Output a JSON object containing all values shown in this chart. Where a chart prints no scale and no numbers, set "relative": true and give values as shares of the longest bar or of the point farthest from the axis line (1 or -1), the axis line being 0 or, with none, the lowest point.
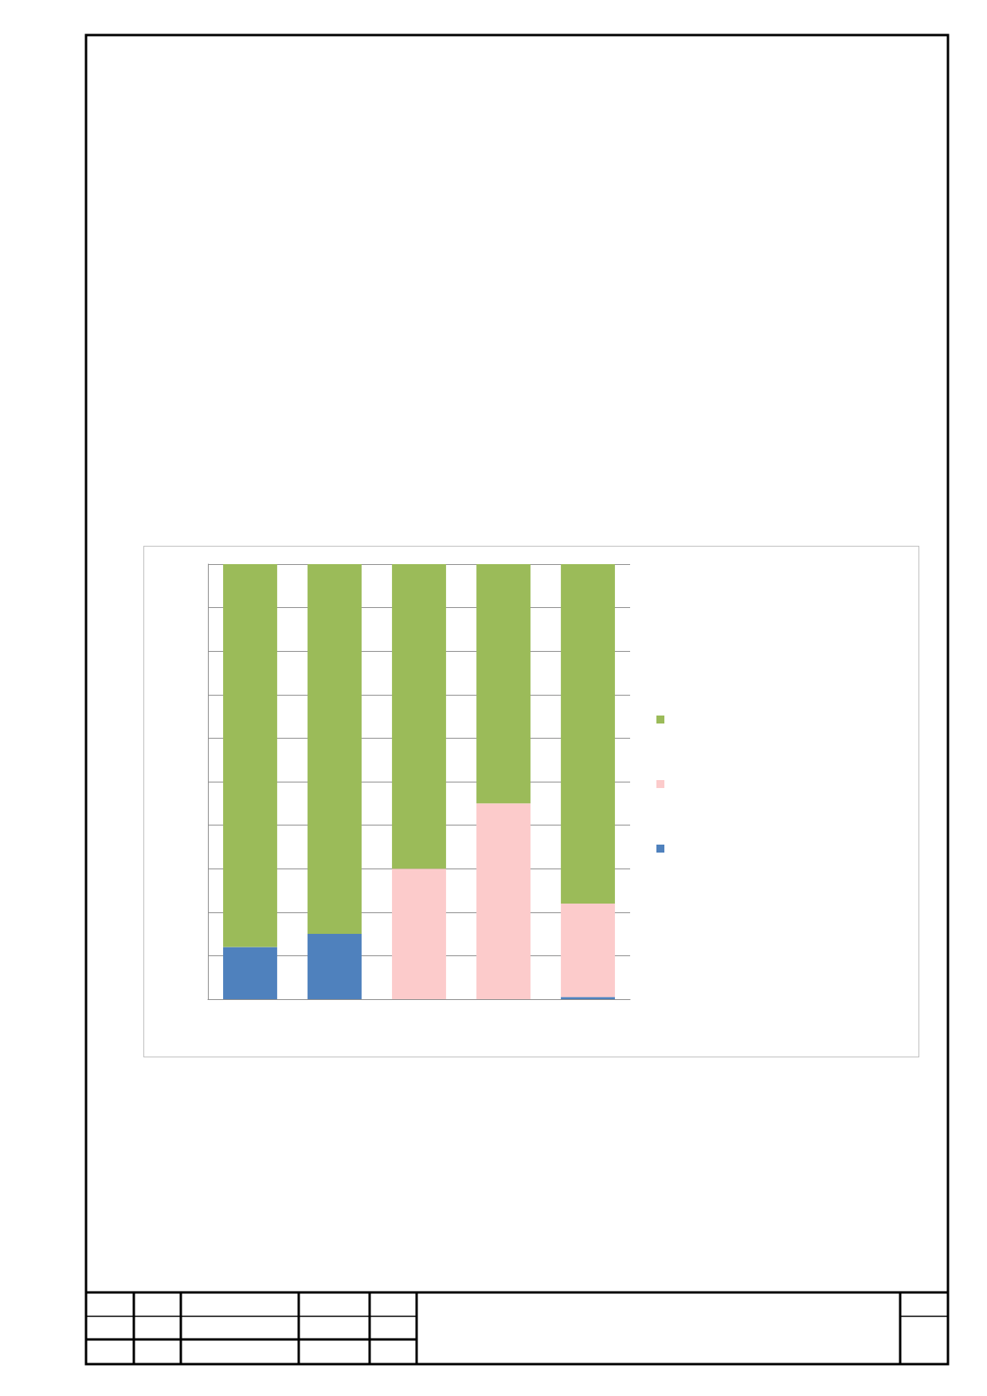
{
  "chart_data": {
    "type": "bar",
    "stacked": true,
    "relative": true,
    "categories": [
      null,
      null,
      null,
      null,
      null
    ],
    "grid": "y",
    "series": [
      {
        "color": "#4f81bd",
        "values": [
          0.12,
          0.15,
          0,
          0,
          0.005
        ]
      },
      {
        "color": "#fccbcb",
        "values": [
          0,
          0,
          0.3,
          0.45,
          0.215
        ]
      },
      {
        "color": "#9bbb59",
        "values": [
          0.88,
          0.85,
          0.7,
          0.55,
          0.78
        ]
      }
    ]
  }
}
